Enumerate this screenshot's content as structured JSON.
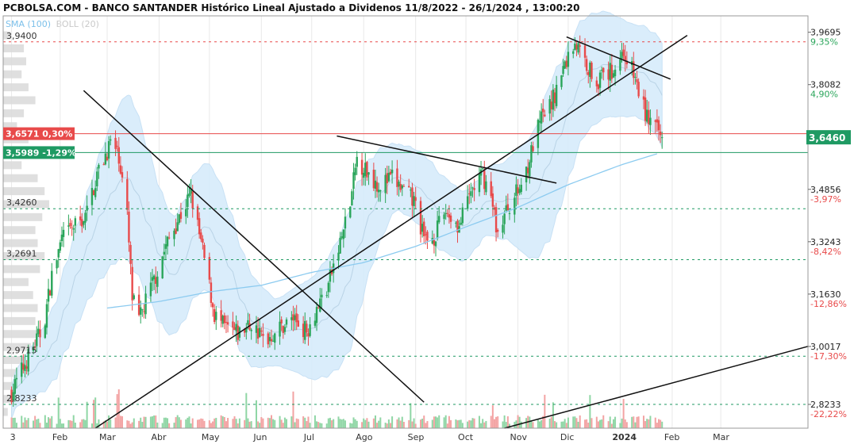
{
  "header": {
    "title": "PCBOLSA.COM - BANCO SANTANDER Histórico Lineal Ajustado a Dividenos 11/8/2022 - 26/1/2024 , 13:00:20",
    "sma_label": "SMA (100)",
    "boll_label": "BOLL (20)"
  },
  "colors": {
    "up": "#2aa55a",
    "down": "#e84a4a",
    "sma": "#8ccbf0",
    "band_fill": "#d6ecfb",
    "band_line": "#c3def4",
    "ma20": "#b9d3e6",
    "resistance": "#e84a4a",
    "support": "#1f9a63",
    "trendline": "#111111",
    "grid": "#e9e9e9"
  },
  "chart_data": {
    "type": "candlestick",
    "title": "BANCO SANTANDER Histórico Lineal Ajustado a Dividenos 11/8/2022 - 26/1/2024",
    "indicators": [
      "SMA (100)",
      "BOLL (20)"
    ],
    "x_tick_labels": [
      "3",
      "Feb",
      "Mar",
      "Abr",
      "May",
      "Jun",
      "Jul",
      "Ago",
      "Sep",
      "Oct",
      "Nov",
      "Dic",
      "2024",
      "Feb",
      "Mar"
    ],
    "x_tick_dates": [
      "2023-01-03",
      "2023-02-01",
      "2023-03-01",
      "2023-04-01",
      "2023-05-01",
      "2023-06-01",
      "2023-07-01",
      "2023-08-01",
      "2023-09-01",
      "2023-10-01",
      "2023-11-01",
      "2023-12-01",
      "2024-01-01",
      "2024-02-01",
      "2024-03-01"
    ],
    "ylim": [
      2.75,
      4.02
    ],
    "last_price": {
      "value": 3.646,
      "label": "3,6460"
    },
    "right_axis": [
      {
        "value": 3.9695,
        "price": "3,9695",
        "pct": "9,35%",
        "sign": "up"
      },
      {
        "value": 3.8082,
        "price": "3,8082",
        "pct": "4,90%",
        "sign": "up"
      },
      {
        "value": 3.6469,
        "price": "3,6469",
        "pct": "",
        "sign": "none"
      },
      {
        "value": 3.4856,
        "price": "3,4856",
        "pct": "-3,97%",
        "sign": "down"
      },
      {
        "value": 3.3243,
        "price": "3,3243",
        "pct": "-8,42%",
        "sign": "down"
      },
      {
        "value": 3.163,
        "price": "3,1630",
        "pct": "-12,86%",
        "sign": "down"
      },
      {
        "value": 3.0017,
        "price": "3,0017",
        "pct": "-17,30%",
        "sign": "down"
      },
      {
        "value": 2.8233,
        "price": "2,8233",
        "pct": "-22,22%",
        "sign": "down"
      }
    ],
    "levels": [
      {
        "value": 3.94,
        "label": "3,9400",
        "color": "red"
      },
      {
        "value": 3.426,
        "label": "3,4260",
        "color": "green"
      },
      {
        "value": 3.2691,
        "label": "3,2691",
        "color": "green"
      },
      {
        "value": 2.9715,
        "label": "2,9715",
        "color": "green"
      },
      {
        "value": 2.8233,
        "label": "2,8233",
        "color": "green"
      }
    ],
    "tags": [
      {
        "value": 3.6571,
        "label": "3,6571",
        "pct": "0,30%",
        "color": "red"
      },
      {
        "value": 3.5989,
        "label": "3,5989",
        "pct": "-1,29%",
        "color": "green"
      }
    ],
    "trendlines": [
      {
        "from": [
          "2023-02-15",
          3.79
        ],
        "to": [
          "2023-09-06",
          2.83
        ]
      },
      {
        "from": [
          "2023-02-22",
          2.75
        ],
        "to": [
          "2024-02-10",
          3.96
        ]
      },
      {
        "from": [
          "2023-07-16",
          3.65
        ],
        "to": [
          "2023-11-24",
          3.505
        ]
      },
      {
        "from": [
          "2023-11-30",
          3.955
        ],
        "to": [
          "2024-01-31",
          3.825
        ]
      },
      {
        "from": [
          "2023-10-24",
          2.75
        ],
        "to": [
          "2024-05-05",
          3.02
        ]
      }
    ],
    "price_path": [
      [
        "2023-01-03",
        2.86
      ],
      [
        "2023-01-12",
        2.96
      ],
      [
        "2023-01-22",
        3.06
      ],
      [
        "2023-01-27",
        3.22
      ],
      [
        "2023-02-02",
        3.33
      ],
      [
        "2023-02-09",
        3.37
      ],
      [
        "2023-02-16",
        3.4
      ],
      [
        "2023-02-23",
        3.53
      ],
      [
        "2023-03-03",
        3.63
      ],
      [
        "2023-03-08",
        3.59
      ],
      [
        "2023-03-13",
        3.4
      ],
      [
        "2023-03-16",
        3.15
      ],
      [
        "2023-03-20",
        3.08
      ],
      [
        "2023-03-24",
        3.14
      ],
      [
        "2023-03-30",
        3.22
      ],
      [
        "2023-04-05",
        3.31
      ],
      [
        "2023-04-12",
        3.39
      ],
      [
        "2023-04-20",
        3.47
      ],
      [
        "2023-04-28",
        3.27
      ],
      [
        "2023-05-04",
        3.1
      ],
      [
        "2023-05-10",
        3.06
      ],
      [
        "2023-05-18",
        3.04
      ],
      [
        "2023-05-26",
        3.07
      ],
      [
        "2023-06-03",
        3.02
      ],
      [
        "2023-06-10",
        3.05
      ],
      [
        "2023-06-20",
        3.09
      ],
      [
        "2023-06-28",
        3.05
      ],
      [
        "2023-07-04",
        3.12
      ],
      [
        "2023-07-10",
        3.18
      ],
      [
        "2023-07-17",
        3.3
      ],
      [
        "2023-07-24",
        3.44
      ],
      [
        "2023-07-28",
        3.58
      ],
      [
        "2023-08-03",
        3.54
      ],
      [
        "2023-08-10",
        3.5
      ],
      [
        "2023-08-18",
        3.52
      ],
      [
        "2023-08-25",
        3.48
      ],
      [
        "2023-09-01",
        3.44
      ],
      [
        "2023-09-06",
        3.33
      ],
      [
        "2023-09-12",
        3.34
      ],
      [
        "2023-09-19",
        3.42
      ],
      [
        "2023-09-27",
        3.37
      ],
      [
        "2023-10-04",
        3.48
      ],
      [
        "2023-10-11",
        3.53
      ],
      [
        "2023-10-16",
        3.46
      ],
      [
        "2023-10-20",
        3.35
      ],
      [
        "2023-10-26",
        3.43
      ],
      [
        "2023-11-02",
        3.49
      ],
      [
        "2023-11-08",
        3.58
      ],
      [
        "2023-11-14",
        3.69
      ],
      [
        "2023-11-21",
        3.75
      ],
      [
        "2023-11-29",
        3.87
      ],
      [
        "2023-12-05",
        3.94
      ],
      [
        "2023-12-11",
        3.88
      ],
      [
        "2023-12-18",
        3.82
      ],
      [
        "2023-12-27",
        3.85
      ],
      [
        "2024-01-03",
        3.91
      ],
      [
        "2024-01-09",
        3.84
      ],
      [
        "2024-01-16",
        3.72
      ],
      [
        "2024-01-22",
        3.67
      ],
      [
        "2024-01-26",
        3.646
      ]
    ],
    "sma100_path": [
      [
        "2023-03-01",
        3.12
      ],
      [
        "2023-04-01",
        3.14
      ],
      [
        "2023-05-01",
        3.17
      ],
      [
        "2023-06-01",
        3.19
      ],
      [
        "2023-07-01",
        3.23
      ],
      [
        "2023-08-01",
        3.26
      ],
      [
        "2023-09-01",
        3.31
      ],
      [
        "2023-10-01",
        3.37
      ],
      [
        "2023-11-01",
        3.43
      ],
      [
        "2023-12-01",
        3.5
      ],
      [
        "2024-01-01",
        3.56
      ],
      [
        "2024-01-26",
        3.6
      ]
    ],
    "boll_width_path": [
      [
        "2023-01-03",
        0.05
      ],
      [
        "2023-02-15",
        0.16
      ],
      [
        "2023-03-15",
        0.26
      ],
      [
        "2023-04-10",
        0.18
      ],
      [
        "2023-05-05",
        0.2
      ],
      [
        "2023-06-10",
        0.1
      ],
      [
        "2023-07-25",
        0.22
      ],
      [
        "2023-08-20",
        0.1
      ],
      [
        "2023-09-10",
        0.12
      ],
      [
        "2023-10-10",
        0.1
      ],
      [
        "2023-10-25",
        0.12
      ],
      [
        "2023-11-20",
        0.24
      ],
      [
        "2023-12-10",
        0.18
      ],
      [
        "2024-01-10",
        0.14
      ],
      [
        "2024-01-26",
        0.16
      ]
    ],
    "volume_profile_at_prices": [
      [
        3.96,
        0.15
      ],
      [
        3.92,
        0.45
      ],
      [
        3.88,
        0.5
      ],
      [
        3.84,
        0.4
      ],
      [
        3.8,
        0.55
      ],
      [
        3.76,
        0.7
      ],
      [
        3.72,
        0.45
      ],
      [
        3.68,
        0.3
      ],
      [
        3.64,
        0.55
      ],
      [
        3.6,
        0.65
      ],
      [
        3.56,
        0.4
      ],
      [
        3.52,
        0.75
      ],
      [
        3.48,
        0.9
      ],
      [
        3.44,
        1.0
      ],
      [
        3.4,
        0.85
      ],
      [
        3.36,
        0.7
      ],
      [
        3.32,
        0.75
      ],
      [
        3.28,
        0.9
      ],
      [
        3.24,
        0.8
      ],
      [
        3.2,
        0.55
      ],
      [
        3.16,
        0.65
      ],
      [
        3.12,
        0.75
      ],
      [
        3.08,
        0.7
      ],
      [
        3.04,
        0.8
      ],
      [
        3.0,
        0.6
      ],
      [
        2.96,
        0.45
      ],
      [
        2.92,
        0.35
      ],
      [
        2.88,
        0.3
      ],
      [
        2.84,
        0.2
      ],
      [
        2.8,
        0.1
      ]
    ]
  }
}
